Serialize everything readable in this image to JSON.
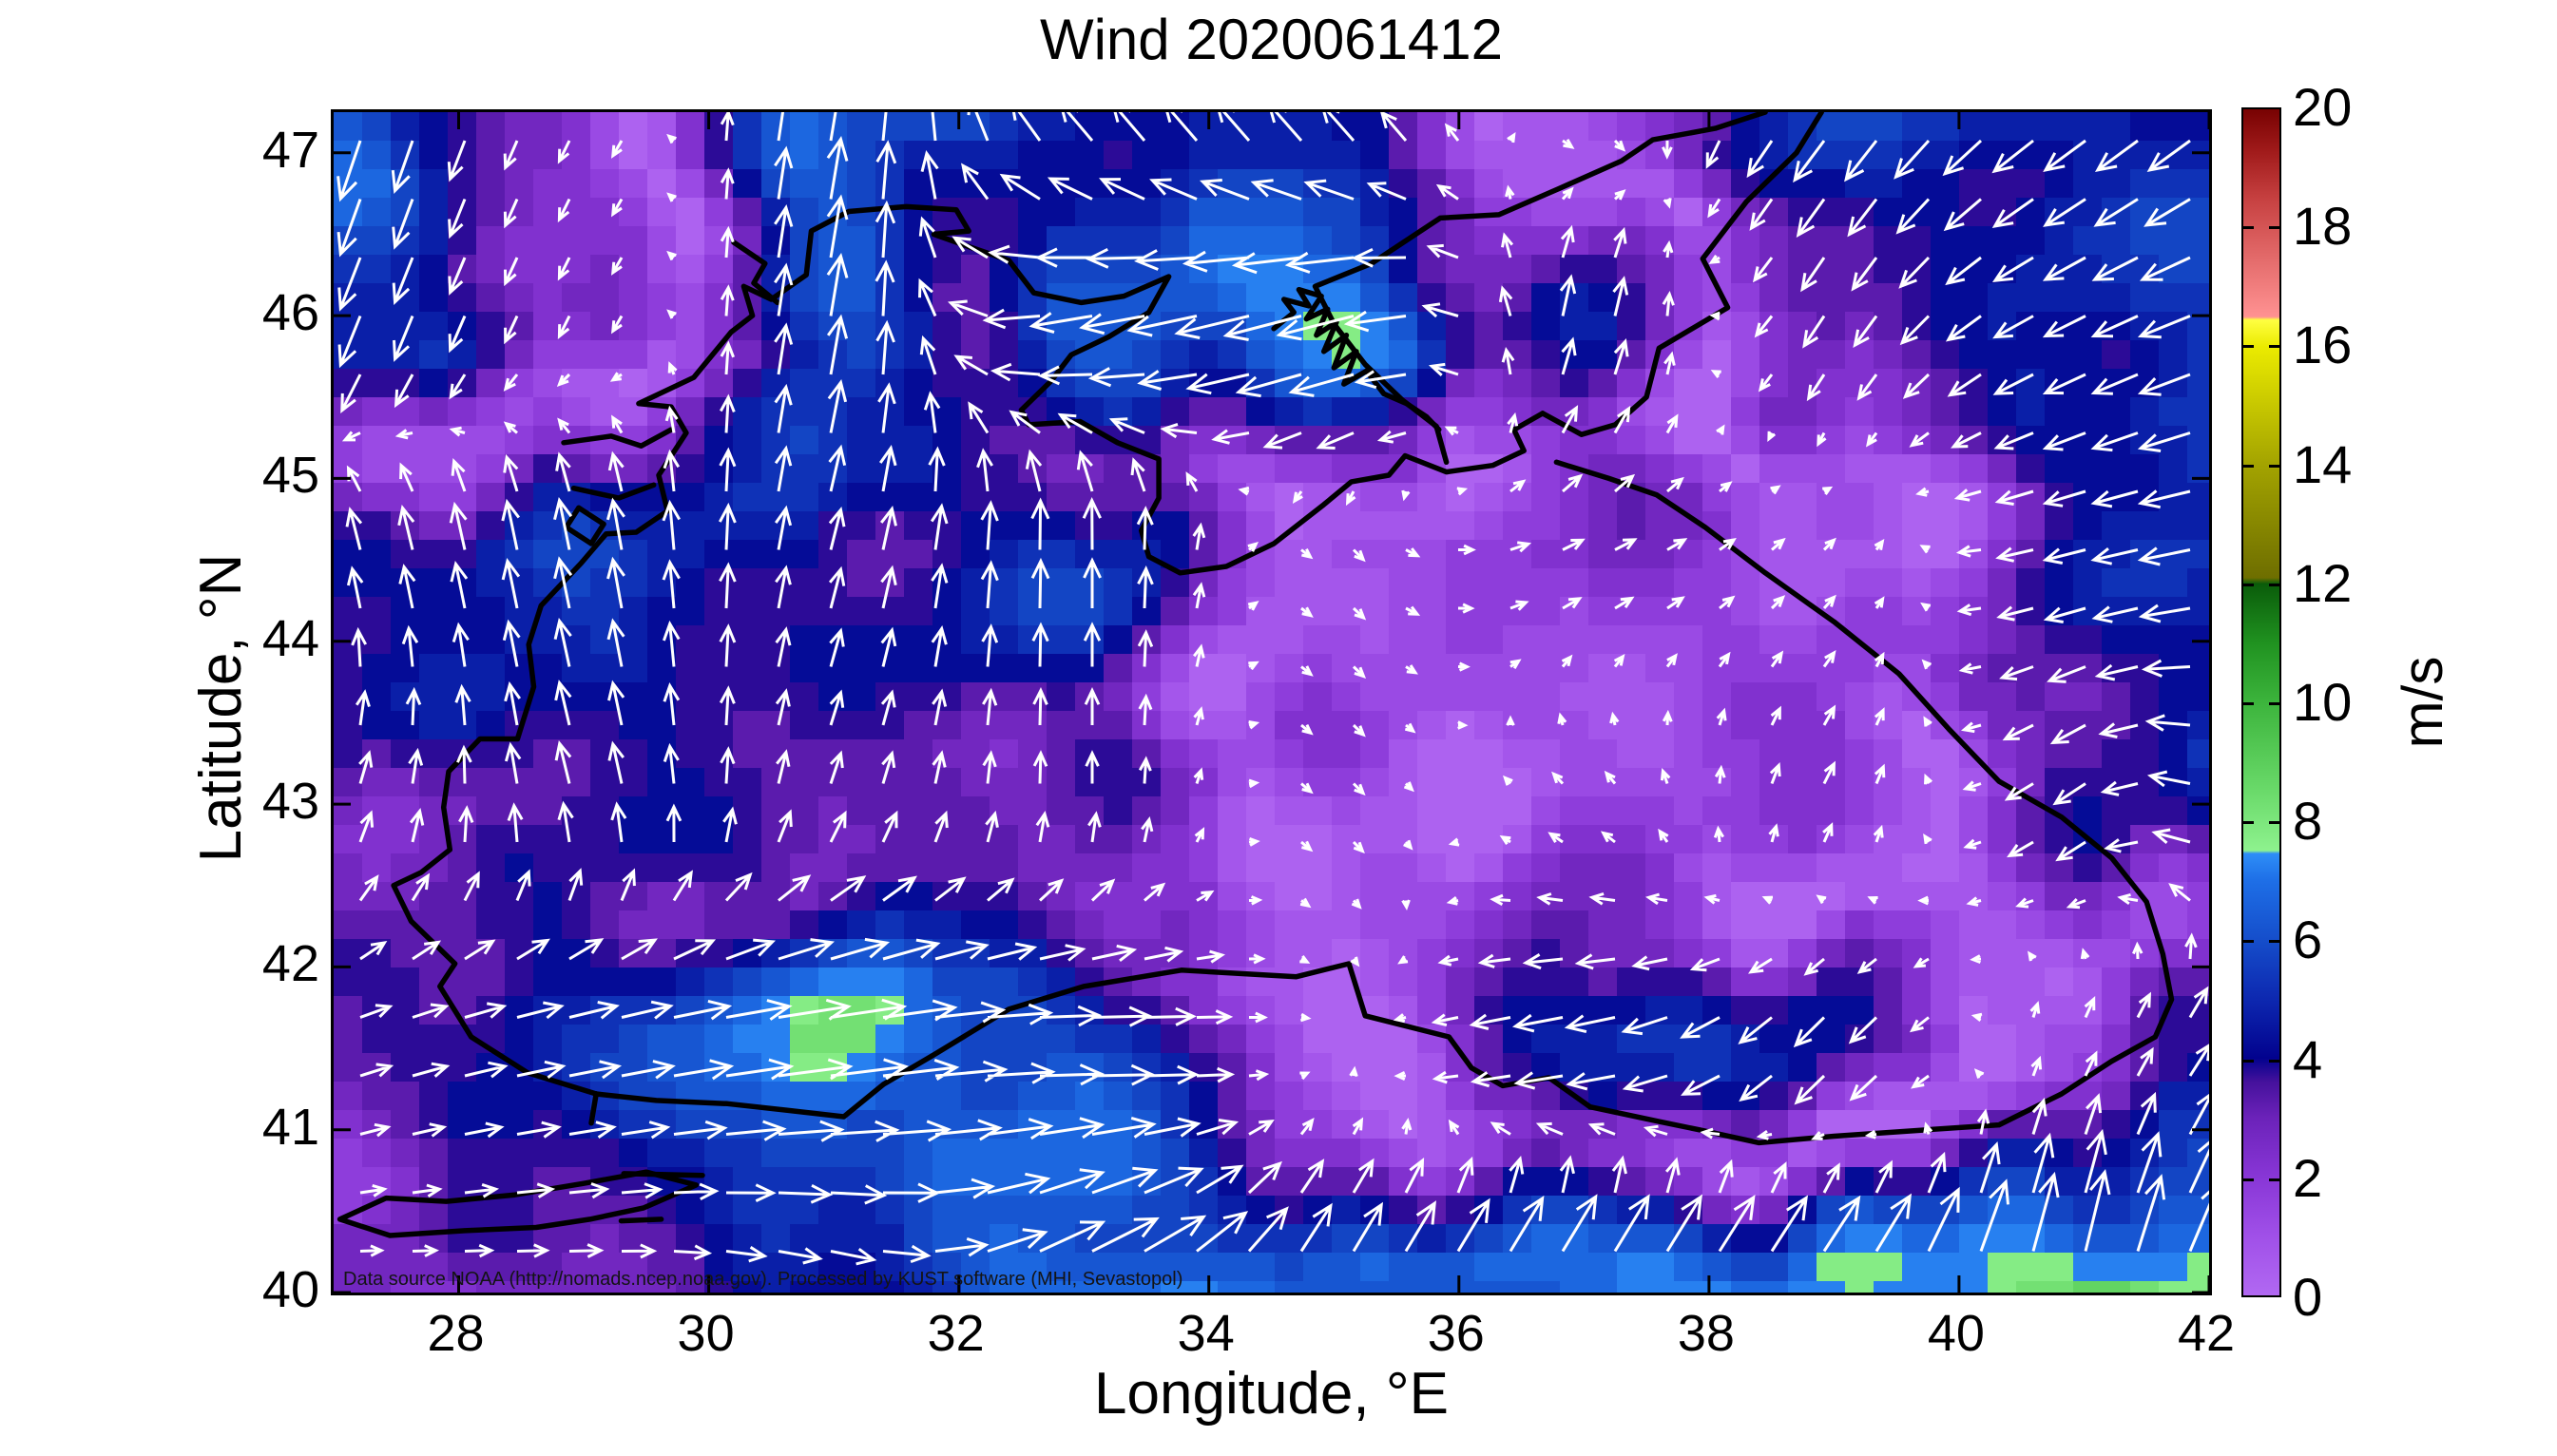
{
  "figure": {
    "title": "Wind 2020061412",
    "attribution": "Data source NOAA (http://nomads.ncep.noaa.gov). Processed by KUST software (MHI, Sevastopol)",
    "x_axis": {
      "label": "Longitude, °E",
      "min": 27,
      "max": 42,
      "ticks": [
        28,
        30,
        32,
        34,
        36,
        38,
        40,
        42
      ]
    },
    "y_axis": {
      "label": "Latitude, °N",
      "min": 40,
      "max": 47.25,
      "ticks": [
        40,
        41,
        42,
        43,
        44,
        45,
        46,
        47
      ]
    },
    "colorbar": {
      "unit": "m/s",
      "min": 0,
      "max": 20,
      "ticks": [
        0,
        2,
        4,
        6,
        8,
        10,
        12,
        14,
        16,
        18,
        20
      ],
      "stops": [
        [
          0,
          "#b168f2"
        ],
        [
          1,
          "#a050e8"
        ],
        [
          2,
          "#8836d6"
        ],
        [
          3,
          "#6b22b9"
        ],
        [
          3.6,
          "#45119c"
        ],
        [
          4,
          "#02028e"
        ],
        [
          5,
          "#0d28b0"
        ],
        [
          6,
          "#154ecb"
        ],
        [
          7,
          "#1e6fe7"
        ],
        [
          7.45,
          "#2e8ef7"
        ],
        [
          7.5,
          "#8ef28e"
        ],
        [
          8.5,
          "#6ada6a"
        ],
        [
          10,
          "#3cb43c"
        ],
        [
          11,
          "#209220"
        ],
        [
          12,
          "#0a5c0a"
        ],
        [
          12.1,
          "#6e6e00"
        ],
        [
          14,
          "#a3a300"
        ],
        [
          16,
          "#ebeb00"
        ],
        [
          16.45,
          "#ffff42"
        ],
        [
          16.5,
          "#ff9292"
        ],
        [
          17.5,
          "#e36a6a"
        ],
        [
          18.5,
          "#c64040"
        ],
        [
          19.3,
          "#a01a1a"
        ],
        [
          20,
          "#780202"
        ]
      ]
    },
    "arrow_color": "#ffffff",
    "coastline_color": "#000000"
  },
  "chart_data": {
    "type": "vector_field_map",
    "region": "Black Sea",
    "title": "Wind 2020061412",
    "timestamp_label": "2020061412",
    "unit": "m/s",
    "lon_range": [
      27,
      42
    ],
    "lat_range": [
      40,
      47.25
    ],
    "speed_range_shown": [
      0,
      20
    ],
    "wind_grid": {
      "comment_free": "estimated wind vectors (u eastward, v northward, m/s) read from the plot",
      "lons": [
        27,
        29,
        31,
        33,
        35,
        37,
        39,
        41,
        42
      ],
      "lats": [
        47.25,
        46,
        44.5,
        43,
        41.5,
        40
      ],
      "u": [
        [
          -2,
          -1,
          1,
          -3,
          -3,
          1,
          -3,
          -4,
          -4
        ],
        [
          -2,
          -1,
          1,
          -6,
          -7.6,
          1,
          -2,
          -4,
          -5
        ],
        [
          -1,
          -1,
          1,
          0,
          1,
          2,
          1,
          -4,
          -5
        ],
        [
          1,
          -1,
          1,
          0,
          1,
          -1,
          1,
          -3,
          -4
        ],
        [
          3,
          5,
          7.6,
          6,
          0,
          -5,
          -3,
          1,
          2
        ],
        [
          2,
          3,
          4,
          6.5,
          3,
          4,
          4,
          2,
          3
        ]
      ],
      "v": [
        [
          -6,
          -2,
          6,
          4,
          4,
          -1,
          -4,
          -3,
          -3
        ],
        [
          -5,
          -2,
          6,
          -1,
          -2,
          4,
          -3,
          -2,
          -2
        ],
        [
          4,
          5,
          4,
          5,
          -1,
          1,
          1,
          -1,
          -1
        ],
        [
          3,
          4,
          3,
          3,
          -1,
          1,
          2,
          -2,
          1
        ],
        [
          1,
          1,
          1,
          0,
          0,
          -1,
          -3,
          2,
          3
        ],
        [
          0,
          0,
          -1,
          3.5,
          5,
          6,
          6,
          8.4,
          7
        ]
      ]
    }
  }
}
